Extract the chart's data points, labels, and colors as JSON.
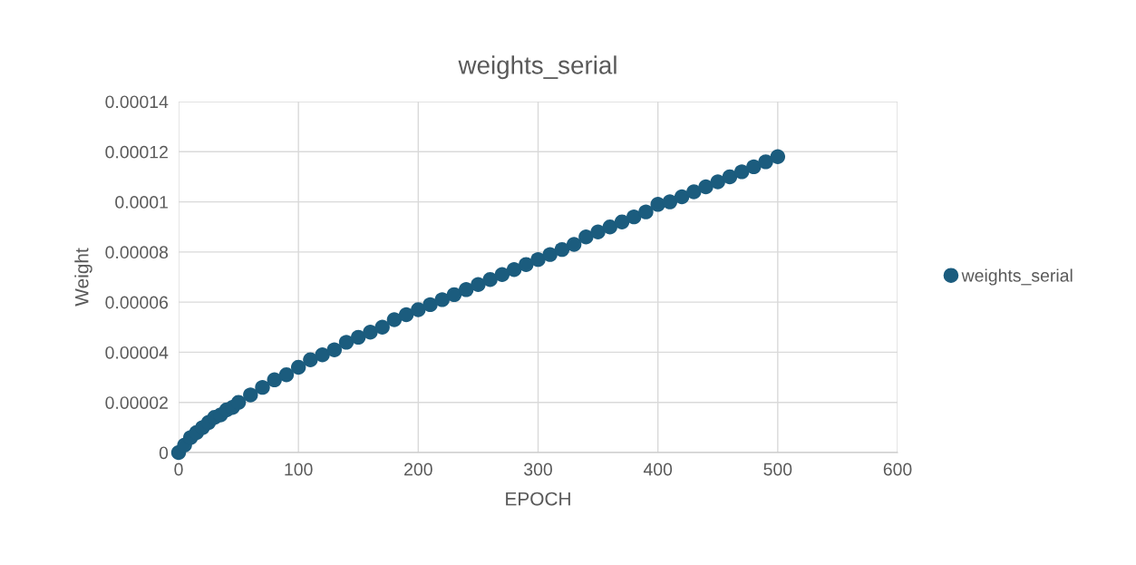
{
  "chart_data": {
    "type": "scatter",
    "title": "weights_serial",
    "xlabel": "EPOCH",
    "ylabel": "Weight",
    "x": [
      0,
      5,
      10,
      15,
      20,
      25,
      30,
      35,
      40,
      45,
      50,
      60,
      70,
      80,
      90,
      100,
      110,
      120,
      130,
      140,
      150,
      160,
      170,
      180,
      190,
      200,
      210,
      220,
      230,
      240,
      250,
      260,
      270,
      280,
      290,
      300,
      310,
      320,
      330,
      340,
      350,
      360,
      370,
      380,
      390,
      400,
      410,
      420,
      430,
      440,
      450,
      460,
      470,
      480,
      490,
      500
    ],
    "series": [
      {
        "name": "weights_serial",
        "color": "#1b5c7e",
        "values": [
          0,
          3e-06,
          6e-06,
          8e-06,
          1e-05,
          1.2e-05,
          1.4e-05,
          1.5e-05,
          1.7e-05,
          1.8e-05,
          2e-05,
          2.3e-05,
          2.6e-05,
          2.9e-05,
          3.1e-05,
          3.4e-05,
          3.7e-05,
          3.9e-05,
          4.1e-05,
          4.4e-05,
          4.6e-05,
          4.8e-05,
          5e-05,
          5.3e-05,
          5.5e-05,
          5.7e-05,
          5.9e-05,
          6.1e-05,
          6.3e-05,
          6.5e-05,
          6.7e-05,
          6.9e-05,
          7.1e-05,
          7.3e-05,
          7.5e-05,
          7.7e-05,
          7.9e-05,
          8.1e-05,
          8.3e-05,
          8.6e-05,
          8.8e-05,
          9e-05,
          9.2e-05,
          9.4e-05,
          9.6e-05,
          9.9e-05,
          0.0001,
          0.000102,
          0.000104,
          0.000106,
          0.000108,
          0.00011,
          0.000112,
          0.000114,
          0.000116,
          0.000118
        ]
      }
    ],
    "xlim": [
      0,
      600
    ],
    "xticks": [
      0,
      100,
      200,
      300,
      400,
      500,
      600
    ],
    "ylim": [
      0,
      0.00014
    ],
    "yticks": [
      0,
      {
        "value": 2e-05,
        "label": "0.00002"
      },
      {
        "value": 4e-05,
        "label": "0.00004"
      },
      {
        "value": 6e-05,
        "label": "0.00006"
      },
      {
        "value": 8e-05,
        "label": "0.00008"
      },
      {
        "value": 0.0001,
        "label": "0.0001"
      },
      {
        "value": 0.00012,
        "label": "0.00012"
      },
      {
        "value": 0.00014,
        "label": "0.00014"
      }
    ],
    "grid": true,
    "legend": "right",
    "marker": "circle"
  }
}
